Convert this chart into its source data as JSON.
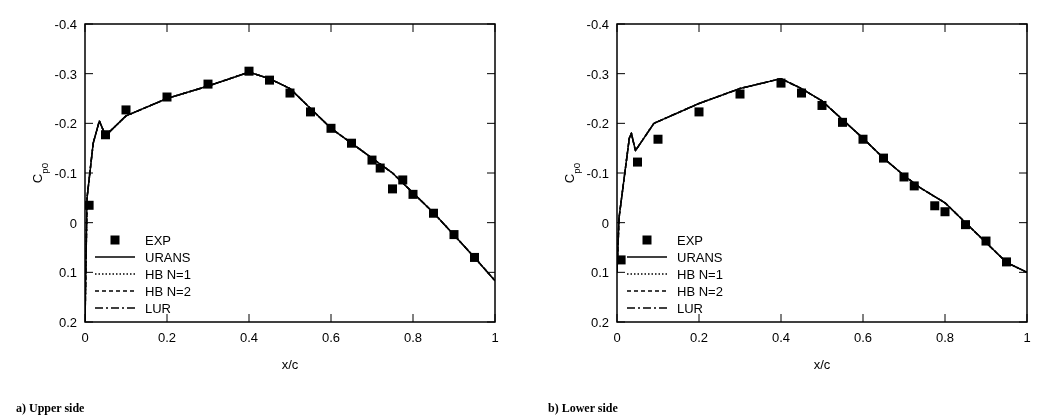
{
  "chart_data": [
    {
      "type": "line",
      "title": "a) Upper side",
      "xlabel": "x/c",
      "ylabel": "C$_{p0}$",
      "xlim": [
        0,
        1
      ],
      "xticks": [
        0,
        0.2,
        0.4,
        0.6,
        0.8,
        1
      ],
      "ylim": [
        0.2,
        -0.4
      ],
      "yticks": [
        -0.4,
        -0.3,
        -0.2,
        -0.1,
        0,
        0.1,
        0.2
      ],
      "legend": "bottom left",
      "grid": false,
      "series": [
        {
          "name": "EXP",
          "type": "scatter",
          "marker": "square",
          "color": "#000000",
          "x": [
            0.01,
            0.05,
            0.1,
            0.2,
            0.3,
            0.4,
            0.45,
            0.5,
            0.55,
            0.6,
            0.65,
            0.7,
            0.72,
            0.75,
            0.775,
            0.8,
            0.85,
            0.9,
            0.95
          ],
          "values": [
            -0.035,
            -0.177,
            -0.227,
            -0.253,
            -0.279,
            -0.305,
            -0.287,
            -0.261,
            -0.223,
            -0.19,
            -0.16,
            -0.126,
            -0.11,
            -0.068,
            -0.086,
            -0.057,
            -0.019,
            0.024,
            0.07
          ]
        },
        {
          "name": "URANS",
          "line_style": "solid",
          "color": "#000000",
          "x": [
            0,
            0.005,
            0.02,
            0.035,
            0.05,
            0.1,
            0.2,
            0.3,
            0.4,
            0.45,
            0.5,
            0.55,
            0.6,
            0.65,
            0.7,
            0.75,
            0.8,
            0.85,
            0.9,
            0.95,
            1
          ],
          "values": [
            0.2,
            -0.05,
            -0.16,
            -0.205,
            -0.175,
            -0.215,
            -0.25,
            -0.275,
            -0.303,
            -0.29,
            -0.27,
            -0.23,
            -0.19,
            -0.16,
            -0.13,
            -0.1,
            -0.06,
            -0.02,
            0.025,
            0.07,
            0.117
          ]
        },
        {
          "name": "HB N=1",
          "line_style": "dotted",
          "color": "#000000",
          "x": [
            0,
            0.005,
            0.02,
            0.035,
            0.05,
            0.1,
            0.2,
            0.3,
            0.4,
            0.45,
            0.5,
            0.55,
            0.6,
            0.65,
            0.7,
            0.75,
            0.8,
            0.85,
            0.9,
            0.95,
            1
          ],
          "values": [
            0.2,
            -0.05,
            -0.16,
            -0.205,
            -0.175,
            -0.215,
            -0.25,
            -0.275,
            -0.303,
            -0.29,
            -0.27,
            -0.23,
            -0.19,
            -0.16,
            -0.13,
            -0.1,
            -0.06,
            -0.02,
            0.025,
            0.07,
            0.117
          ]
        },
        {
          "name": "HB N=2",
          "line_style": "dashed",
          "color": "#000000",
          "x": [
            0,
            0.005,
            0.02,
            0.035,
            0.05,
            0.1,
            0.2,
            0.3,
            0.4,
            0.45,
            0.5,
            0.55,
            0.6,
            0.65,
            0.7,
            0.75,
            0.8,
            0.85,
            0.9,
            0.95,
            1
          ],
          "values": [
            0.2,
            -0.05,
            -0.16,
            -0.205,
            -0.175,
            -0.215,
            -0.25,
            -0.275,
            -0.303,
            -0.29,
            -0.27,
            -0.23,
            -0.19,
            -0.16,
            -0.13,
            -0.1,
            -0.06,
            -0.02,
            0.025,
            0.07,
            0.117
          ]
        },
        {
          "name": "LUR",
          "line_style": "dashdot",
          "color": "#000000",
          "x": [
            0,
            0.005,
            0.02,
            0.035,
            0.05,
            0.1,
            0.2,
            0.3,
            0.4,
            0.45,
            0.5,
            0.55,
            0.6,
            0.65,
            0.7,
            0.75,
            0.8,
            0.85,
            0.9,
            0.95,
            1
          ],
          "values": [
            0.2,
            -0.05,
            -0.16,
            -0.205,
            -0.175,
            -0.215,
            -0.25,
            -0.275,
            -0.303,
            -0.29,
            -0.27,
            -0.23,
            -0.19,
            -0.16,
            -0.13,
            -0.1,
            -0.06,
            -0.02,
            0.025,
            0.07,
            0.117
          ]
        }
      ]
    },
    {
      "type": "line",
      "title": "b) Lower side",
      "xlabel": "x/c",
      "ylabel": "C$_{p0}$",
      "xlim": [
        0,
        1
      ],
      "xticks": [
        0,
        0.2,
        0.4,
        0.6,
        0.8,
        1
      ],
      "ylim": [
        0.2,
        -0.4
      ],
      "yticks": [
        -0.4,
        -0.3,
        -0.2,
        -0.1,
        0,
        0.1,
        0.2
      ],
      "legend": "bottom left",
      "grid": false,
      "series": [
        {
          "name": "EXP",
          "type": "scatter",
          "marker": "square",
          "color": "#000000",
          "x": [
            0.01,
            0.05,
            0.1,
            0.2,
            0.3,
            0.4,
            0.45,
            0.5,
            0.55,
            0.6,
            0.65,
            0.7,
            0.725,
            0.775,
            0.8,
            0.85,
            0.9,
            0.95
          ],
          "values": [
            0.075,
            -0.122,
            -0.168,
            -0.223,
            -0.259,
            -0.281,
            -0.261,
            -0.236,
            -0.202,
            -0.168,
            -0.13,
            -0.092,
            -0.074,
            -0.034,
            -0.022,
            0.004,
            0.037,
            0.079
          ]
        },
        {
          "name": "URANS",
          "line_style": "solid",
          "color": "#000000",
          "x": [
            0,
            0.005,
            0.03,
            0.035,
            0.045,
            0.09,
            0.2,
            0.3,
            0.4,
            0.45,
            0.5,
            0.56,
            0.6,
            0.65,
            0.7,
            0.74,
            0.8,
            0.85,
            0.9,
            0.95,
            1
          ],
          "values": [
            0.1,
            -0.01,
            -0.17,
            -0.18,
            -0.145,
            -0.2,
            -0.24,
            -0.27,
            -0.29,
            -0.27,
            -0.245,
            -0.2,
            -0.17,
            -0.13,
            -0.095,
            -0.07,
            -0.04,
            0,
            0.04,
            0.08,
            0.1
          ]
        },
        {
          "name": "HB N=1",
          "line_style": "dotted",
          "color": "#000000",
          "x": [
            0,
            0.005,
            0.03,
            0.035,
            0.045,
            0.09,
            0.2,
            0.3,
            0.4,
            0.45,
            0.5,
            0.56,
            0.6,
            0.65,
            0.7,
            0.74,
            0.8,
            0.85,
            0.9,
            0.95,
            1
          ],
          "values": [
            0.1,
            -0.01,
            -0.17,
            -0.18,
            -0.145,
            -0.2,
            -0.24,
            -0.27,
            -0.29,
            -0.27,
            -0.245,
            -0.2,
            -0.17,
            -0.13,
            -0.095,
            -0.07,
            -0.04,
            0,
            0.04,
            0.08,
            0.1
          ]
        },
        {
          "name": "HB N=2",
          "line_style": "dashed",
          "color": "#000000",
          "x": [
            0,
            0.005,
            0.03,
            0.035,
            0.045,
            0.09,
            0.2,
            0.3,
            0.4,
            0.45,
            0.5,
            0.56,
            0.6,
            0.65,
            0.7,
            0.74,
            0.8,
            0.85,
            0.9,
            0.95,
            1
          ],
          "values": [
            0.1,
            -0.01,
            -0.17,
            -0.18,
            -0.145,
            -0.2,
            -0.24,
            -0.27,
            -0.29,
            -0.27,
            -0.245,
            -0.2,
            -0.17,
            -0.13,
            -0.095,
            -0.07,
            -0.04,
            0,
            0.04,
            0.08,
            0.1
          ]
        },
        {
          "name": "LUR",
          "line_style": "dashdot",
          "color": "#000000",
          "x": [
            0,
            0.005,
            0.03,
            0.035,
            0.045,
            0.09,
            0.2,
            0.3,
            0.4,
            0.45,
            0.5,
            0.56,
            0.6,
            0.65,
            0.7,
            0.74,
            0.8,
            0.85,
            0.9,
            0.95,
            1
          ],
          "values": [
            0.1,
            -0.01,
            -0.17,
            -0.18,
            -0.145,
            -0.2,
            -0.24,
            -0.27,
            -0.29,
            -0.27,
            -0.245,
            -0.2,
            -0.17,
            -0.13,
            -0.095,
            -0.07,
            -0.04,
            0,
            0.04,
            0.08,
            0.1
          ]
        }
      ]
    }
  ]
}
